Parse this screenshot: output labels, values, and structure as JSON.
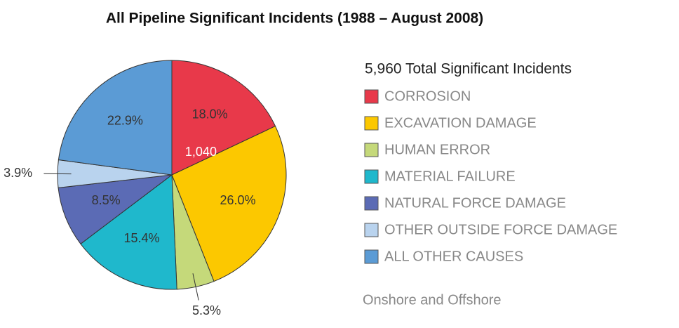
{
  "chart_data": {
    "type": "pie",
    "title": "All Pipeline Significant Incidents (1988 – August 2008)",
    "subtitle": "5,960 Total Significant Incidents",
    "note": "Onshore and Offshore",
    "annotation": "1,040",
    "categories": [
      "CORROSION",
      "EXCAVATION DAMAGE",
      "HUMAN ERROR",
      "MATERIAL FAILURE",
      "NATURAL FORCE DAMAGE",
      "OTHER OUTSIDE FORCE DAMAGE",
      "ALL OTHER CAUSES"
    ],
    "values": [
      18.0,
      26.0,
      5.3,
      15.4,
      8.5,
      3.9,
      22.9
    ],
    "value_labels": [
      "18.0%",
      "26.0%",
      "5.3%",
      "15.4%",
      "8.5%",
      "3.9%",
      "22.9%"
    ],
    "colors": [
      "#e8394a",
      "#fcc800",
      "#c5d97a",
      "#1fb8cc",
      "#5b6bb5",
      "#b9d3ee",
      "#5b9bd5"
    ],
    "legend": "right"
  }
}
